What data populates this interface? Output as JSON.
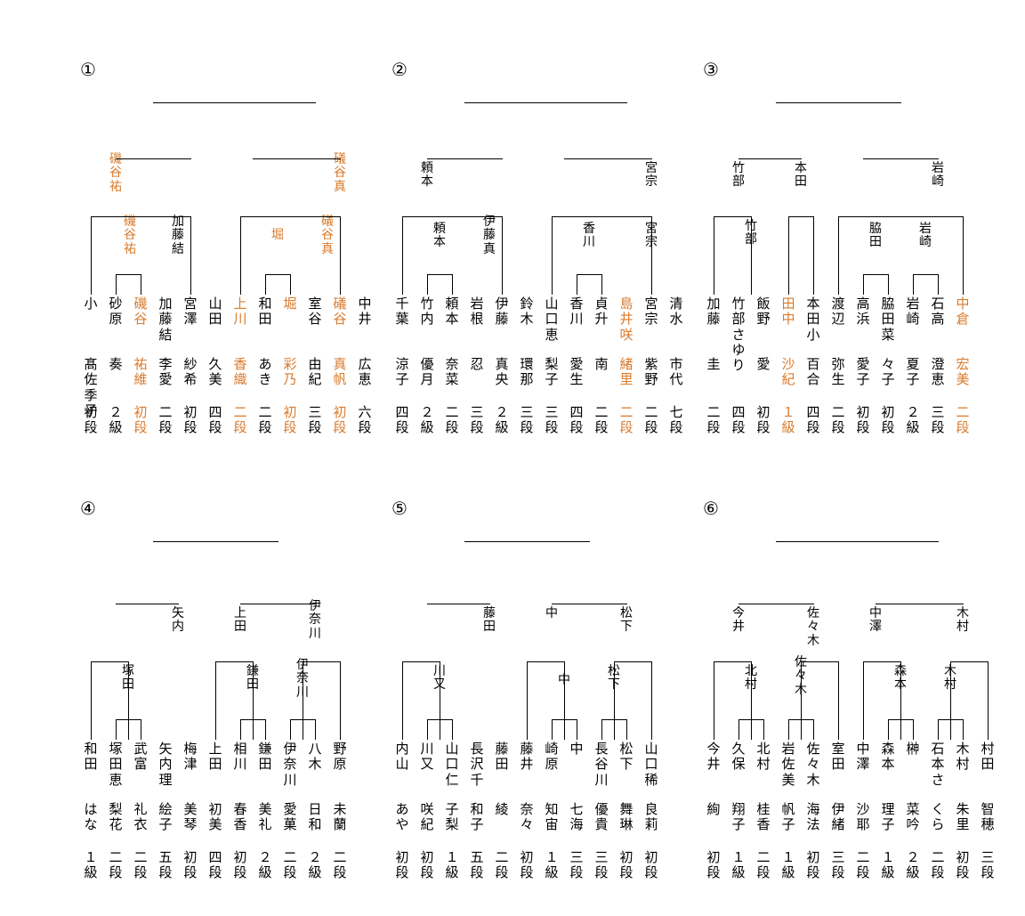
{
  "accent_color": "#d97a2b",
  "groups": [
    {
      "number": "①",
      "players": [
        {
          "surname": "小",
          "name": "髙佐季子",
          "rank": "初段",
          "hi": false
        },
        {
          "surname": "砂原",
          "name": "奏",
          "rank": "２級",
          "hi": false
        },
        {
          "surname": "磯谷",
          "name": "祐維",
          "rank": "初段",
          "hi": true
        },
        {
          "surname": "加藤結",
          "name": "李愛",
          "rank": "二段",
          "hi": false
        },
        {
          "surname": "宮澤",
          "name": "紗希",
          "rank": "初段",
          "hi": false
        },
        {
          "surname": "山田",
          "name": "久美",
          "rank": "四段",
          "hi": false
        },
        {
          "surname": "上川",
          "name": "香織",
          "rank": "二段",
          "hi": true
        },
        {
          "surname": "和田",
          "name": "あき",
          "rank": "二段",
          "hi": false
        },
        {
          "surname": "堀",
          "name": "彩乃",
          "rank": "初段",
          "hi": true
        },
        {
          "surname": "室谷",
          "name": "由紀",
          "rank": "三段",
          "hi": false
        },
        {
          "surname": "礒谷",
          "name": "真帆",
          "rank": "初段",
          "hi": true
        },
        {
          "surname": "中井",
          "name": "広恵",
          "rank": "六段",
          "hi": false
        }
      ],
      "r1": [
        {
          "text": "磯谷祐",
          "hi": true
        },
        {
          "text": "加藤結",
          "hi": false
        },
        {
          "text": "堀",
          "hi": true
        },
        {
          "text": "礒谷真",
          "hi": true
        }
      ],
      "r2": [
        {
          "text": "磯谷祐",
          "hi": true
        },
        {
          "text": "礒谷真",
          "hi": true
        }
      ]
    },
    {
      "number": "②",
      "players": [
        {
          "surname": "千葉",
          "name": "涼子",
          "rank": "四段",
          "hi": false
        },
        {
          "surname": "竹内",
          "name": "優月",
          "rank": "２級",
          "hi": false
        },
        {
          "surname": "頼本",
          "name": "奈菜",
          "rank": "二段",
          "hi": false
        },
        {
          "surname": "岩根",
          "name": "忍",
          "rank": "三段",
          "hi": false
        },
        {
          "surname": "伊藤",
          "name": "真央",
          "rank": "２級",
          "hi": false
        },
        {
          "surname": "鈴木",
          "name": "環那",
          "rank": "三段",
          "hi": false
        },
        {
          "surname": "山口恵",
          "name": "梨子",
          "rank": "三段",
          "hi": false
        },
        {
          "surname": "香川",
          "name": "愛生",
          "rank": "四段",
          "hi": false
        },
        {
          "surname": "貞升",
          "name": "南",
          "rank": "二段",
          "hi": false
        },
        {
          "surname": "島井咲",
          "name": "緒里",
          "rank": "二段",
          "hi": true
        },
        {
          "surname": "宮宗",
          "name": "紫野",
          "rank": "二段",
          "hi": false
        },
        {
          "surname": "清水",
          "name": "市代",
          "rank": "七段",
          "hi": false
        }
      ],
      "r1": [
        {
          "text": "頼本",
          "hi": false
        },
        {
          "text": "伊藤真",
          "hi": false
        },
        {
          "text": "香川",
          "hi": false
        },
        {
          "text": "宮宗",
          "hi": false
        }
      ],
      "r2": [
        {
          "text": "頼本",
          "hi": false
        },
        {
          "text": "宮宗",
          "hi": false
        }
      ]
    },
    {
      "number": "③",
      "players": [
        {
          "surname": "加藤",
          "name": "圭",
          "rank": "二段",
          "hi": false
        },
        {
          "surname": "竹部さゆり",
          "name": "",
          "rank": "四段",
          "hi": false
        },
        {
          "surname": "飯野",
          "name": "愛",
          "rank": "初段",
          "hi": false
        },
        {
          "surname": "田中",
          "name": "沙紀",
          "rank": "１級",
          "hi": true
        },
        {
          "surname": "本田小",
          "name": "百合",
          "rank": "四段",
          "hi": false
        },
        {
          "surname": "渡辺",
          "name": "弥生",
          "rank": "二段",
          "hi": false
        },
        {
          "surname": "高浜",
          "name": "愛子",
          "rank": "初段",
          "hi": false
        },
        {
          "surname": "脇田菜",
          "name": "々子",
          "rank": "初段",
          "hi": false
        },
        {
          "surname": "岩崎",
          "name": "夏子",
          "rank": "２級",
          "hi": false
        },
        {
          "surname": "石高",
          "name": "澄恵",
          "rank": "三段",
          "hi": false
        },
        {
          "surname": "中倉",
          "name": "宏美",
          "rank": "二段",
          "hi": true
        }
      ],
      "r1": [
        {
          "text": "竹部",
          "hi": false
        },
        {
          "text": "脇田",
          "hi": false
        },
        {
          "text": "岩崎",
          "hi": false
        }
      ],
      "r2": [
        {
          "text": "竹部",
          "hi": false
        },
        {
          "text": "本田",
          "hi": false
        },
        {
          "text": "岩崎",
          "hi": false
        }
      ]
    },
    {
      "number": "④",
      "players": [
        {
          "surname": "和田",
          "name": "はな",
          "rank": "１級",
          "hi": false
        },
        {
          "surname": "塚田恵",
          "name": "梨花",
          "rank": "二段",
          "hi": false
        },
        {
          "surname": "武富",
          "name": "礼衣",
          "rank": "二段",
          "hi": false
        },
        {
          "surname": "矢内理",
          "name": "絵子",
          "rank": "五段",
          "hi": false
        },
        {
          "surname": "梅津",
          "name": "美琴",
          "rank": "初段",
          "hi": false
        },
        {
          "surname": "上田",
          "name": "初美",
          "rank": "四段",
          "hi": false
        },
        {
          "surname": "相川",
          "name": "春香",
          "rank": "初段",
          "hi": false
        },
        {
          "surname": "鎌田",
          "name": "美礼",
          "rank": "２級",
          "hi": false
        },
        {
          "surname": "伊奈川",
          "name": "愛菓",
          "rank": "二段",
          "hi": false
        },
        {
          "surname": "八木",
          "name": "日和",
          "rank": "２級",
          "hi": false
        },
        {
          "surname": "野原",
          "name": "未蘭",
          "rank": "二段",
          "hi": false
        }
      ],
      "r1": [
        {
          "text": "塚田",
          "hi": false
        },
        {
          "text": "鎌田",
          "hi": false
        },
        {
          "text": "伊奈川",
          "hi": false
        }
      ],
      "r2": [
        {
          "text": "矢内",
          "hi": false
        },
        {
          "text": "上田",
          "hi": false
        },
        {
          "text": "伊奈川",
          "hi": false
        }
      ]
    },
    {
      "number": "⑤",
      "players": [
        {
          "surname": "内山",
          "name": "あや",
          "rank": "初段",
          "hi": false
        },
        {
          "surname": "川又",
          "name": "咲紀",
          "rank": "初段",
          "hi": false
        },
        {
          "surname": "山口仁",
          "name": "子梨",
          "rank": "１級",
          "hi": false
        },
        {
          "surname": "長沢千",
          "name": "和子",
          "rank": "五段",
          "hi": false
        },
        {
          "surname": "藤田",
          "name": "綾",
          "rank": "二段",
          "hi": false
        },
        {
          "surname": "藤井",
          "name": "奈々",
          "rank": "初段",
          "hi": false
        },
        {
          "surname": "崎原",
          "name": "知宙",
          "rank": "１級",
          "hi": false
        },
        {
          "surname": "中",
          "name": "七海",
          "rank": "三段",
          "hi": false
        },
        {
          "surname": "長谷川",
          "name": "優貴",
          "rank": "三段",
          "hi": false
        },
        {
          "surname": "松下",
          "name": "舞琳",
          "rank": "初段",
          "hi": false
        },
        {
          "surname": "山口稀",
          "name": "良莉",
          "rank": "初段",
          "hi": false
        }
      ],
      "r1": [
        {
          "text": "川又",
          "hi": false
        },
        {
          "text": "中",
          "hi": false
        },
        {
          "text": "松下",
          "hi": false
        }
      ],
      "r2": [
        {
          "text": "藤田",
          "hi": false
        },
        {
          "text": "中",
          "hi": false
        },
        {
          "text": "松下",
          "hi": false
        }
      ]
    },
    {
      "number": "⑥",
      "players": [
        {
          "surname": "今井",
          "name": "絢",
          "rank": "初段",
          "hi": false
        },
        {
          "surname": "久保",
          "name": "翔子",
          "rank": "１級",
          "hi": false
        },
        {
          "surname": "北村",
          "name": "桂香",
          "rank": "二段",
          "hi": false
        },
        {
          "surname": "岩佐美",
          "name": "帆子",
          "rank": "１級",
          "hi": false
        },
        {
          "surname": "佐々木",
          "name": "海法",
          "rank": "初段",
          "hi": false
        },
        {
          "surname": "室田",
          "name": "伊緒",
          "rank": "三段",
          "hi": false
        },
        {
          "surname": "中澤",
          "name": "沙耶",
          "rank": "二段",
          "hi": false
        },
        {
          "surname": "森本",
          "name": "理子",
          "rank": "１級",
          "hi": false
        },
        {
          "surname": "榊",
          "name": "菜吟",
          "rank": "２級",
          "hi": false
        },
        {
          "surname": "石本さ",
          "name": "くら",
          "rank": "二段",
          "hi": false
        },
        {
          "surname": "木村",
          "name": "朱里",
          "rank": "初段",
          "hi": false
        },
        {
          "surname": "村田",
          "name": "智穂",
          "rank": "三段",
          "hi": false
        }
      ],
      "r1": [
        {
          "text": "北村",
          "hi": false
        },
        {
          "text": "佐々木",
          "hi": false
        },
        {
          "text": "森本",
          "hi": false
        },
        {
          "text": "木村",
          "hi": false
        }
      ],
      "r2": [
        {
          "text": "今井",
          "hi": false
        },
        {
          "text": "佐々木",
          "hi": false
        },
        {
          "text": "中澤",
          "hi": false
        },
        {
          "text": "木村",
          "hi": false
        }
      ]
    }
  ]
}
